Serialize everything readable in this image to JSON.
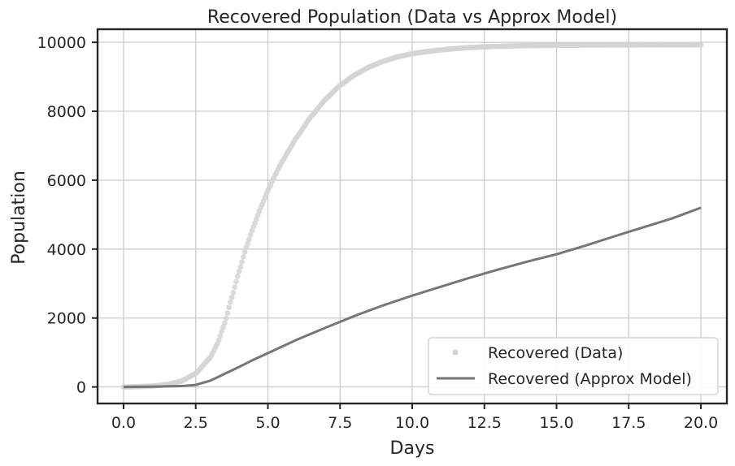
{
  "chart_data": {
    "type": "line",
    "title": "Recovered Population (Data vs Approx Model)",
    "xlabel": "Days",
    "ylabel": "Population",
    "xlim": [
      -0.9,
      20.9
    ],
    "ylim": [
      -480,
      10380
    ],
    "xticks": [
      0.0,
      2.5,
      5.0,
      7.5,
      10.0,
      12.5,
      15.0,
      17.5,
      20.0
    ],
    "xtick_labels": [
      "0.0",
      "2.5",
      "5.0",
      "7.5",
      "10.0",
      "12.5",
      "15.0",
      "17.5",
      "20.0"
    ],
    "yticks": [
      0,
      2000,
      4000,
      6000,
      8000,
      10000
    ],
    "ytick_labels": [
      "0",
      "2000",
      "4000",
      "6000",
      "8000",
      "10000"
    ],
    "grid": true,
    "legend_position": "bottom-right",
    "series": [
      {
        "name": "Recovered (Data)",
        "kind": "scatter",
        "color": "#d3d3d3",
        "x": [
          0,
          0.5,
          1,
          1.5,
          2,
          2.5,
          3,
          3.25,
          3.5,
          3.75,
          4,
          4.25,
          4.5,
          4.75,
          5,
          5.25,
          5.5,
          5.75,
          6,
          6.5,
          7,
          7.5,
          8,
          8.5,
          9,
          9.5,
          10,
          10.5,
          11,
          11.5,
          12,
          12.5,
          13,
          13.5,
          14,
          14.5,
          15,
          15.5,
          16,
          16.5,
          17,
          17.5,
          18,
          18.5,
          19,
          19.5,
          20
        ],
        "y": [
          0,
          8,
          25,
          70,
          170,
          390,
          850,
          1250,
          1850,
          2600,
          3350,
          4050,
          4650,
          5200,
          5700,
          6150,
          6550,
          6900,
          7250,
          7850,
          8350,
          8750,
          9050,
          9280,
          9450,
          9580,
          9670,
          9730,
          9780,
          9820,
          9850,
          9870,
          9885,
          9895,
          9905,
          9910,
          9915,
          9918,
          9920,
          9922,
          9924,
          9925,
          9926,
          9927,
          9928,
          9929,
          9930
        ]
      },
      {
        "name": "Recovered (Approx Model)",
        "kind": "line",
        "color": "#767676",
        "x": [
          0,
          1,
          2,
          2.5,
          3,
          3.5,
          4,
          4.5,
          5,
          6,
          7,
          8,
          9,
          10,
          11,
          12,
          13,
          14,
          15,
          16,
          17,
          18,
          19,
          20
        ],
        "y": [
          0,
          8,
          25,
          60,
          180,
          380,
          580,
          790,
          980,
          1370,
          1720,
          2060,
          2370,
          2650,
          2910,
          3170,
          3410,
          3640,
          3850,
          4100,
          4370,
          4630,
          4890,
          5200
        ]
      }
    ]
  }
}
